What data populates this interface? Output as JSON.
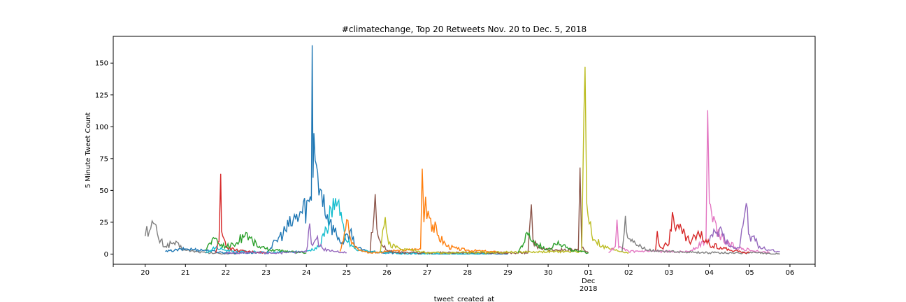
{
  "chart_data": {
    "type": "line",
    "title": "#climatechange, Top 20 Retweets Nov. 20 to Dec. 5, 2018",
    "xlabel": "tweet_created_at",
    "ylabel": "5 Minute Tweet Count",
    "ylim": [
      -8,
      171
    ],
    "xlim": [
      "2018-11-19T05:00",
      "2018-12-06T15:00"
    ],
    "yticks": [
      0,
      25,
      50,
      75,
      100,
      125,
      150
    ],
    "xticks": [
      {
        "date": "2018-11-20",
        "label": "20"
      },
      {
        "date": "2018-11-21",
        "label": "21"
      },
      {
        "date": "2018-11-22",
        "label": "22"
      },
      {
        "date": "2018-11-23",
        "label": "23"
      },
      {
        "date": "2018-11-24",
        "label": "24"
      },
      {
        "date": "2018-11-25",
        "label": "25"
      },
      {
        "date": "2018-11-26",
        "label": "26"
      },
      {
        "date": "2018-11-27",
        "label": "27"
      },
      {
        "date": "2018-11-28",
        "label": "28"
      },
      {
        "date": "2018-11-29",
        "label": "29"
      },
      {
        "date": "2018-11-30",
        "label": "30"
      },
      {
        "date": "2018-12-01",
        "label": "01",
        "sublabels": [
          "Dec",
          "2018"
        ]
      },
      {
        "date": "2018-12-02",
        "label": "02"
      },
      {
        "date": "2018-12-03",
        "label": "03"
      },
      {
        "date": "2018-12-04",
        "label": "04"
      },
      {
        "date": "2018-12-05",
        "label": "05"
      },
      {
        "date": "2018-12-06",
        "label": "06"
      }
    ],
    "grid": false,
    "legend": "none",
    "series": [
      {
        "color": "#7f7f7f",
        "points": [
          [
            "2018-11-20T00:00",
            14
          ],
          [
            "2018-11-20T01:00",
            22
          ],
          [
            "2018-11-20T02:30",
            18
          ],
          [
            "2018-11-20T05:00",
            24
          ],
          [
            "2018-11-20T08:00",
            12
          ],
          [
            "2018-11-20T12:00",
            6
          ],
          [
            "2018-11-20T17:00",
            9
          ],
          [
            "2018-11-21T00:00",
            3
          ],
          [
            "2018-11-21T12:00",
            1
          ],
          [
            "2018-11-22T06:00",
            0
          ]
        ]
      },
      {
        "color": "#1f77b4",
        "points": [
          [
            "2018-11-20T12:00",
            2
          ],
          [
            "2018-11-21T00:00",
            4
          ],
          [
            "2018-11-21T12:00",
            3
          ],
          [
            "2018-11-22T00:00",
            1
          ],
          [
            "2018-11-23T00:00",
            1
          ],
          [
            "2018-11-24T03:00",
            42
          ],
          [
            "2018-11-24T03:30",
            164
          ],
          [
            "2018-11-24T04:00",
            60
          ],
          [
            "2018-11-24T04:30",
            95
          ],
          [
            "2018-11-24T06:00",
            70
          ],
          [
            "2018-11-24T09:00",
            50
          ],
          [
            "2018-11-24T14:00",
            25
          ],
          [
            "2018-11-24T18:00",
            15
          ],
          [
            "2018-11-24T22:00",
            8
          ],
          [
            "2018-11-25T02:00",
            18
          ],
          [
            "2018-11-25T06:00",
            5
          ],
          [
            "2018-11-25T12:00",
            2
          ],
          [
            "2018-11-26T00:00",
            1
          ],
          [
            "2018-11-27T00:00",
            0
          ],
          [
            "2018-11-28T00:00",
            0
          ],
          [
            "2018-11-29T00:00",
            0
          ]
        ]
      },
      {
        "color": "#17becf",
        "points": [
          [
            "2018-11-21T12:00",
            1
          ],
          [
            "2018-11-21T18:00",
            5
          ],
          [
            "2018-11-22T00:00",
            3
          ],
          [
            "2018-11-23T00:00",
            1
          ],
          [
            "2018-11-24T00:00",
            2
          ],
          [
            "2018-11-24T08:00",
            6
          ],
          [
            "2018-11-24T12:00",
            20
          ],
          [
            "2018-11-24T16:00",
            44
          ],
          [
            "2018-11-24T20:00",
            30
          ],
          [
            "2018-11-25T00:00",
            10
          ],
          [
            "2018-11-25T06:00",
            3
          ],
          [
            "2018-11-26T00:00",
            1
          ],
          [
            "2018-11-27T00:00",
            0
          ],
          [
            "2018-11-28T12:00",
            0
          ]
        ]
      },
      {
        "color": "#d62728",
        "points": [
          [
            "2018-11-21T18:00",
            1
          ],
          [
            "2018-11-21T20:00",
            10
          ],
          [
            "2018-11-21T21:00",
            63
          ],
          [
            "2018-11-21T21:30",
            18
          ],
          [
            "2018-11-21T23:00",
            12
          ],
          [
            "2018-11-22T01:00",
            5
          ],
          [
            "2018-11-22T06:00",
            3
          ],
          [
            "2018-11-22T12:00",
            2
          ],
          [
            "2018-11-23T00:00",
            1
          ]
        ]
      },
      {
        "color": "#2ca02c",
        "points": [
          [
            "2018-11-21T12:00",
            3
          ],
          [
            "2018-11-21T16:00",
            12
          ],
          [
            "2018-11-21T20:00",
            8
          ],
          [
            "2018-11-22T00:00",
            6
          ],
          [
            "2018-11-22T06:00",
            8
          ],
          [
            "2018-11-22T12:00",
            17
          ],
          [
            "2018-11-22T16:00",
            10
          ],
          [
            "2018-11-22T20:00",
            6
          ],
          [
            "2018-11-23T00:00",
            4
          ],
          [
            "2018-11-23T12:00",
            2
          ],
          [
            "2018-11-24T00:00",
            1
          ]
        ]
      },
      {
        "color": "#9467bd",
        "points": [
          [
            "2018-11-22T00:00",
            1
          ],
          [
            "2018-11-23T12:00",
            1
          ],
          [
            "2018-11-24T00:00",
            2
          ],
          [
            "2018-11-24T02:00",
            24
          ],
          [
            "2018-11-24T03:00",
            8
          ],
          [
            "2018-11-24T06:00",
            12
          ],
          [
            "2018-11-24T10:00",
            4
          ],
          [
            "2018-11-24T18:00",
            2
          ],
          [
            "2018-11-25T00:00",
            1
          ]
        ]
      },
      {
        "color": "#ff7f0e",
        "points": [
          [
            "2018-11-24T20:00",
            2
          ],
          [
            "2018-11-25T00:00",
            27
          ],
          [
            "2018-11-25T03:00",
            8
          ],
          [
            "2018-11-25T08:00",
            3
          ],
          [
            "2018-11-25T14:00",
            1
          ],
          [
            "2018-11-26T20:00",
            4
          ],
          [
            "2018-11-26T21:00",
            67
          ],
          [
            "2018-11-26T22:00",
            25
          ],
          [
            "2018-11-26T23:00",
            45
          ],
          [
            "2018-11-27T02:00",
            28
          ],
          [
            "2018-11-27T06:00",
            15
          ],
          [
            "2018-11-27T12:00",
            6
          ],
          [
            "2018-11-27T18:00",
            4
          ],
          [
            "2018-11-28T00:00",
            3
          ],
          [
            "2018-11-28T12:00",
            2
          ],
          [
            "2018-11-29T00:00",
            1
          ]
        ]
      },
      {
        "color": "#8c564b",
        "points": [
          [
            "2018-11-25T14:00",
            2
          ],
          [
            "2018-11-25T17:00",
            47
          ],
          [
            "2018-11-25T18:00",
            20
          ],
          [
            "2018-11-25T20:00",
            10
          ],
          [
            "2018-11-26T00:00",
            3
          ],
          [
            "2018-11-26T06:00",
            1
          ],
          [
            "2018-11-29T12:00",
            1
          ],
          [
            "2018-11-29T14:00",
            39
          ],
          [
            "2018-11-29T15:00",
            10
          ],
          [
            "2018-11-29T20:00",
            4
          ],
          [
            "2018-11-30T18:00",
            3
          ],
          [
            "2018-11-30T19:00",
            68
          ],
          [
            "2018-11-30T20:00",
            5
          ],
          [
            "2018-12-01T00:00",
            1
          ]
        ]
      },
      {
        "color": "#bcbd22",
        "points": [
          [
            "2018-11-25T20:00",
            1
          ],
          [
            "2018-11-25T23:00",
            29
          ],
          [
            "2018-11-26T01:00",
            8
          ],
          [
            "2018-11-26T08:00",
            4
          ],
          [
            "2018-11-26T16:00",
            3
          ],
          [
            "2018-11-27T00:00",
            1
          ],
          [
            "2018-11-30T20:00",
            2
          ],
          [
            "2018-11-30T22:00",
            147
          ],
          [
            "2018-11-30T23:00",
            40
          ],
          [
            "2018-12-01T02:00",
            15
          ],
          [
            "2018-12-01T08:00",
            6
          ],
          [
            "2018-12-01T16:00",
            3
          ],
          [
            "2018-12-02T00:00",
            1
          ]
        ]
      },
      {
        "color": "#2ca02c",
        "points": [
          [
            "2018-11-29T06:00",
            1
          ],
          [
            "2018-11-29T12:00",
            15
          ],
          [
            "2018-11-29T16:00",
            8
          ],
          [
            "2018-11-30T00:00",
            4
          ],
          [
            "2018-11-30T06:00",
            10
          ],
          [
            "2018-11-30T12:00",
            4
          ],
          [
            "2018-11-30T18:00",
            2
          ],
          [
            "2018-12-01T00:00",
            1
          ]
        ]
      },
      {
        "color": "#e377c2",
        "points": [
          [
            "2018-12-01T12:00",
            1
          ],
          [
            "2018-12-01T16:00",
            6
          ],
          [
            "2018-12-01T17:00",
            27
          ],
          [
            "2018-12-01T18:00",
            5
          ],
          [
            "2018-12-02T00:00",
            2
          ],
          [
            "2018-12-03T12:00",
            2
          ],
          [
            "2018-12-03T22:00",
            10
          ],
          [
            "2018-12-03T23:00",
            113
          ],
          [
            "2018-12-04T00:00",
            40
          ],
          [
            "2018-12-04T02:00",
            25
          ],
          [
            "2018-12-04T06:00",
            15
          ],
          [
            "2018-12-04T12:00",
            8
          ],
          [
            "2018-12-04T18:00",
            5
          ],
          [
            "2018-12-05T00:00",
            3
          ],
          [
            "2018-12-05T12:00",
            1
          ]
        ]
      },
      {
        "color": "#7f7f7f",
        "points": [
          [
            "2018-12-01T20:00",
            2
          ],
          [
            "2018-12-01T22:00",
            30
          ],
          [
            "2018-12-02T00:00",
            12
          ],
          [
            "2018-12-02T06:00",
            6
          ],
          [
            "2018-12-02T12:00",
            3
          ],
          [
            "2018-12-03T00:00",
            2
          ],
          [
            "2018-12-04T00:00",
            1
          ],
          [
            "2018-12-05T00:00",
            1
          ],
          [
            "2018-12-05T18:00",
            0
          ]
        ]
      },
      {
        "color": "#d62728",
        "points": [
          [
            "2018-12-02T16:00",
            3
          ],
          [
            "2018-12-02T17:00",
            18
          ],
          [
            "2018-12-02T19:00",
            5
          ],
          [
            "2018-12-03T00:00",
            8
          ],
          [
            "2018-12-03T02:00",
            33
          ],
          [
            "2018-12-03T06:00",
            20
          ],
          [
            "2018-12-03T12:00",
            10
          ],
          [
            "2018-12-03T18:00",
            15
          ],
          [
            "2018-12-04T00:00",
            8
          ],
          [
            "2018-12-04T12:00",
            3
          ],
          [
            "2018-12-05T00:00",
            1
          ]
        ]
      },
      {
        "color": "#9467bd",
        "points": [
          [
            "2018-12-04T00:00",
            10
          ],
          [
            "2018-12-04T06:00",
            20
          ],
          [
            "2018-12-04T12:00",
            6
          ],
          [
            "2018-12-04T18:00",
            5
          ],
          [
            "2018-12-04T22:00",
            40
          ],
          [
            "2018-12-05T00:00",
            15
          ],
          [
            "2018-12-05T06:00",
            6
          ],
          [
            "2018-12-05T12:00",
            3
          ],
          [
            "2018-12-05T18:00",
            2
          ]
        ]
      }
    ]
  }
}
